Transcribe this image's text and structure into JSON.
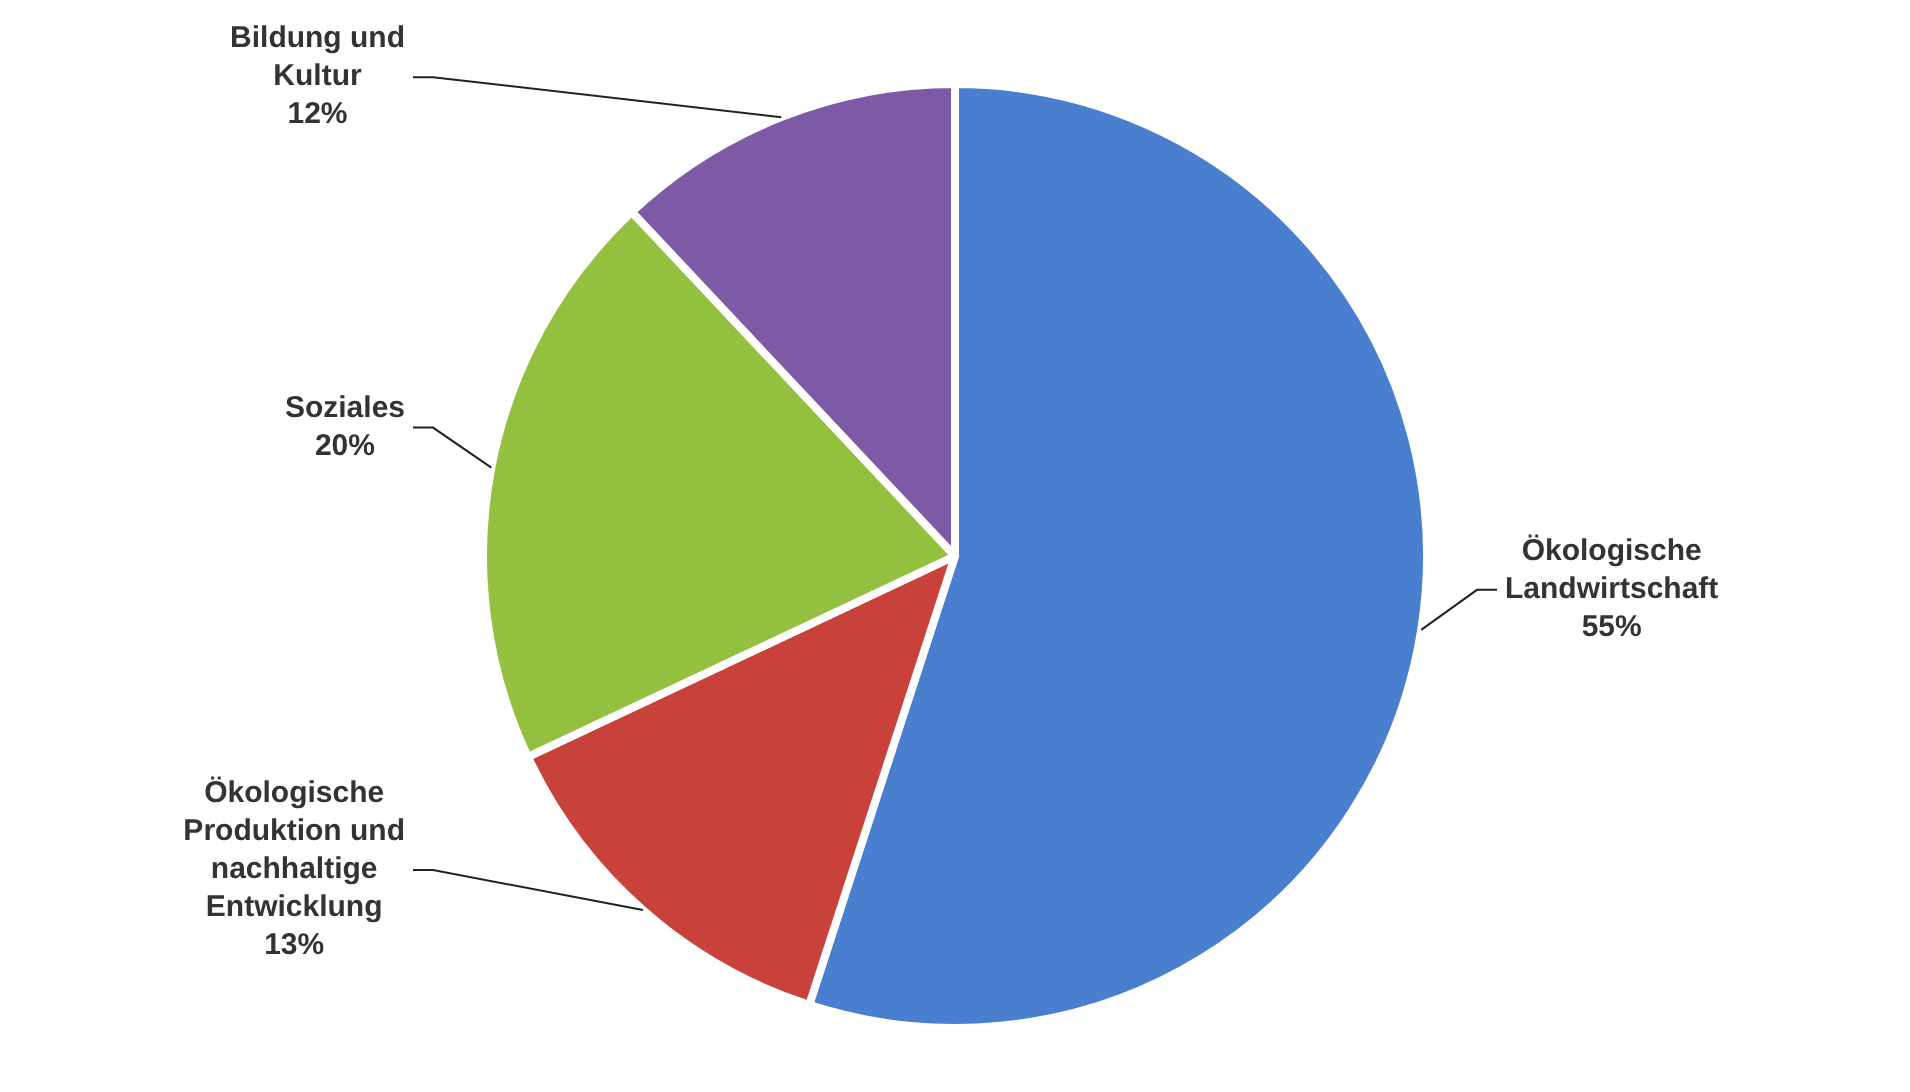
{
  "chart_data": {
    "type": "pie",
    "categories": [
      "Ökologische Landwirtschaft",
      "Ökologische Produktion und nachhaltige Entwicklung",
      "Soziales",
      "Bildung und Kultur"
    ],
    "values": [
      55,
      13,
      20,
      12
    ],
    "colors": [
      "#4a7fd0",
      "#c8413a",
      "#93c13f",
      "#7d5aa6"
    ],
    "value_labels": [
      "55%",
      "13%",
      "20%",
      "12%"
    ],
    "legend": false
  }
}
